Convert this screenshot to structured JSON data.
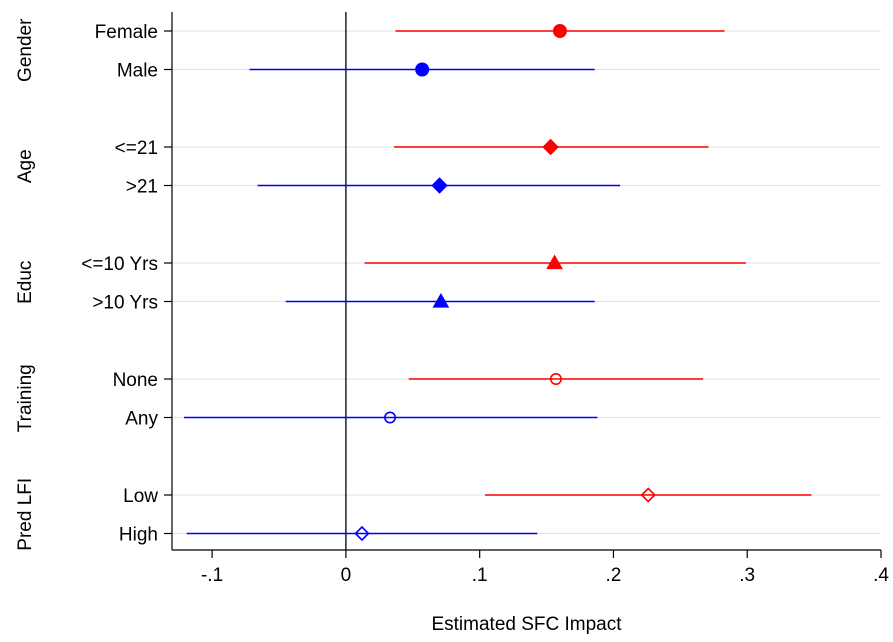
{
  "chart_data": {
    "type": "forest",
    "xlabel": "Estimated SFC Impact",
    "xlim": [
      -0.13,
      0.4
    ],
    "x_ticks": [
      {
        "value": -0.1,
        "label": "-.1"
      },
      {
        "value": 0,
        "label": "0"
      },
      {
        "value": 0.1,
        "label": ".1"
      },
      {
        "value": 0.2,
        "label": ".2"
      },
      {
        "value": 0.3,
        "label": ".3"
      },
      {
        "value": 0.4,
        "label": ".4"
      }
    ],
    "reference_line": 0,
    "grid": "horizontal",
    "colors": {
      "first_level": "#ff0000",
      "second_level": "#0000ff",
      "reference": "#000000",
      "grid": "#e6e6e6"
    },
    "groups": [
      {
        "label": "Gender",
        "rows": [
          {
            "label": "Female",
            "estimate": 0.16,
            "ci": [
              0.037,
              0.283
            ],
            "color": "#ff0000",
            "marker": "circle-filled"
          },
          {
            "label": "Male",
            "estimate": 0.057,
            "ci": [
              -0.072,
              0.186
            ],
            "color": "#0000ff",
            "marker": "circle-filled"
          }
        ]
      },
      {
        "label": "Age",
        "rows": [
          {
            "label": "<=21",
            "estimate": 0.153,
            "ci": [
              0.036,
              0.271
            ],
            "color": "#ff0000",
            "marker": "diamond-filled"
          },
          {
            "label": ">21",
            "estimate": 0.07,
            "ci": [
              -0.066,
              0.205
            ],
            "color": "#0000ff",
            "marker": "diamond-filled"
          }
        ]
      },
      {
        "label": "Educ",
        "rows": [
          {
            "label": "<=10 Yrs",
            "estimate": 0.156,
            "ci": [
              0.014,
              0.299
            ],
            "color": "#ff0000",
            "marker": "triangle-filled"
          },
          {
            "label": ">10 Yrs",
            "estimate": 0.071,
            "ci": [
              -0.045,
              0.186
            ],
            "color": "#0000ff",
            "marker": "triangle-filled"
          }
        ]
      },
      {
        "label": "Training",
        "rows": [
          {
            "label": "None",
            "estimate": 0.157,
            "ci": [
              0.047,
              0.267
            ],
            "color": "#ff0000",
            "marker": "circle-hollow"
          },
          {
            "label": "Any",
            "estimate": 0.033,
            "ci": [
              -0.121,
              0.188
            ],
            "color": "#0000ff",
            "marker": "circle-hollow"
          }
        ]
      },
      {
        "label": "Pred LFI",
        "rows": [
          {
            "label": "Low",
            "estimate": 0.226,
            "ci": [
              0.104,
              0.348
            ],
            "color": "#ff0000",
            "marker": "diamond-hollow"
          },
          {
            "label": "High",
            "estimate": 0.012,
            "ci": [
              -0.119,
              0.143
            ],
            "color": "#0000ff",
            "marker": "diamond-hollow"
          }
        ]
      }
    ]
  }
}
